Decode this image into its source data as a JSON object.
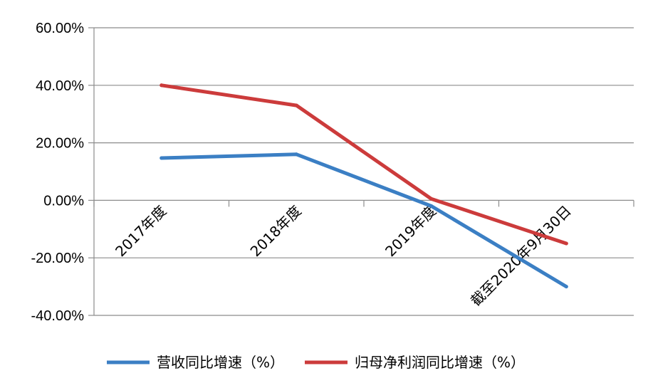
{
  "chart_data": {
    "type": "line",
    "categories": [
      "2017年度",
      "2018年度",
      "2019年度",
      "截至2020年9月30日"
    ],
    "series": [
      {
        "name": "营收同比增速（%）",
        "values": [
          14.7,
          16.0,
          -2.0,
          -30.0
        ],
        "color": "#3b7fc4"
      },
      {
        "name": "归母净利润同比增速（%）",
        "values": [
          40.0,
          33.0,
          0.5,
          -15.0
        ],
        "color": "#cc3b3b"
      }
    ],
    "y_ticks": [
      "60.00%",
      "40.00%",
      "20.00%",
      "0.00%",
      "-20.00%",
      "-40.00%"
    ],
    "y_tick_values": [
      60,
      40,
      20,
      0,
      -20,
      -40
    ],
    "ylim": [
      -40,
      60
    ],
    "grid": true,
    "legend_position": "bottom"
  }
}
